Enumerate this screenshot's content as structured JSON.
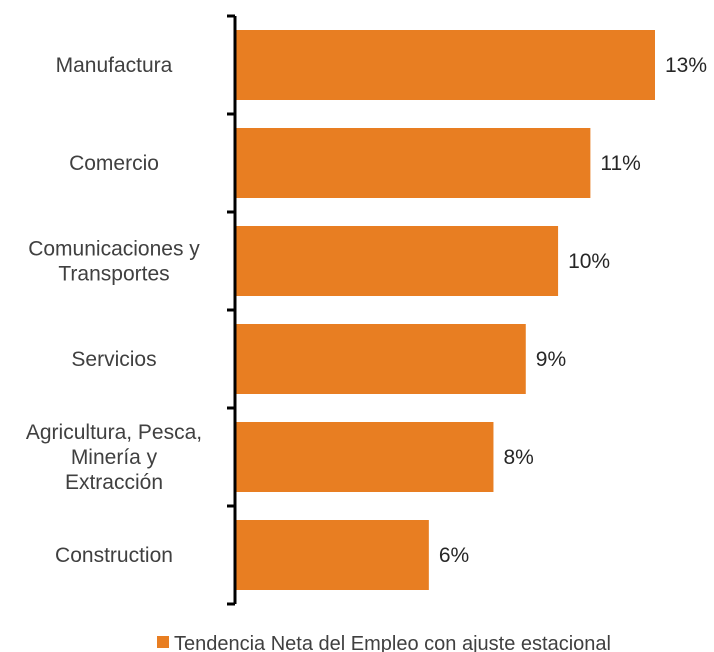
{
  "chart_data": {
    "type": "bar",
    "orientation": "horizontal",
    "categories": [
      "Manufactura",
      "Comercio",
      "Comunicaciones y Transportes",
      "Servicios",
      "Agricultura, Pesca, Minería y Extracción",
      "Construction"
    ],
    "category_lines": [
      [
        "Manufactura"
      ],
      [
        "Comercio"
      ],
      [
        "Comunicaciones y",
        "Transportes"
      ],
      [
        "Servicios"
      ],
      [
        "Agricultura, Pesca,",
        "Minería y",
        "Extracción"
      ],
      [
        "Construction"
      ]
    ],
    "series": [
      {
        "name": "Tendencia Neta del Empleo con ajuste estacional",
        "values": [
          13,
          11,
          10,
          9,
          8,
          6
        ],
        "value_labels": [
          "13%",
          "11%",
          "10%",
          "9%",
          "8%",
          "6%"
        ],
        "color": "#E87E22"
      }
    ],
    "xlim": [
      0,
      13
    ],
    "grid": false,
    "legend": "bottom"
  }
}
